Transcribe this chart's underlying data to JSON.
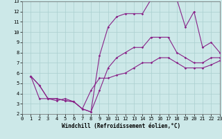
{
  "xlabel": "Windchill (Refroidissement éolien,°C)",
  "xlim": [
    0,
    23
  ],
  "ylim": [
    2,
    13
  ],
  "xticks": [
    0,
    1,
    2,
    3,
    4,
    5,
    6,
    7,
    8,
    9,
    10,
    11,
    12,
    13,
    14,
    15,
    16,
    17,
    18,
    19,
    20,
    21,
    22,
    23
  ],
  "yticks": [
    2,
    3,
    4,
    5,
    6,
    7,
    8,
    9,
    10,
    11,
    12,
    13
  ],
  "bg_color": "#cce8e8",
  "grid_color": "#aacfcf",
  "line_color": "#882288",
  "line1_x": [
    1,
    2,
    3,
    4,
    5,
    6,
    7,
    8,
    9,
    10,
    11,
    12,
    13,
    14,
    15,
    16,
    17,
    18,
    19,
    20,
    21,
    22,
    23
  ],
  "line1_y": [
    5.7,
    4.8,
    3.5,
    3.5,
    3.3,
    3.2,
    2.5,
    2.2,
    4.3,
    6.5,
    7.5,
    8.0,
    8.5,
    8.5,
    9.5,
    9.5,
    9.5,
    8.0,
    7.5,
    7.0,
    7.0,
    7.5,
    7.5
  ],
  "line2_x": [
    1,
    2,
    3,
    4,
    5,
    6,
    7,
    8,
    9,
    10,
    11,
    12,
    13,
    14,
    15,
    16,
    17,
    18,
    19,
    20,
    21,
    22,
    23
  ],
  "line2_y": [
    5.7,
    4.8,
    3.5,
    3.5,
    3.3,
    3.2,
    2.5,
    2.2,
    7.7,
    10.5,
    11.5,
    11.8,
    11.8,
    11.8,
    13.2,
    13.5,
    13.2,
    13.2,
    10.5,
    12.0,
    8.5,
    9.0,
    8.0
  ],
  "line3_x": [
    1,
    2,
    3,
    4,
    5,
    6,
    7,
    8,
    9,
    10,
    11,
    12,
    13,
    14,
    15,
    16,
    17,
    18,
    19,
    20,
    21,
    22,
    23
  ],
  "line3_y": [
    5.7,
    3.5,
    3.5,
    3.3,
    3.5,
    3.2,
    2.5,
    4.3,
    5.5,
    5.5,
    5.8,
    6.0,
    6.5,
    7.0,
    7.0,
    7.5,
    7.5,
    7.0,
    6.5,
    6.5,
    6.5,
    6.8,
    7.2
  ],
  "marker": "D",
  "markersize": 1.8,
  "linewidth": 0.8,
  "tick_fontsize": 5.0,
  "label_fontsize": 5.5,
  "tick_font": "monospace"
}
